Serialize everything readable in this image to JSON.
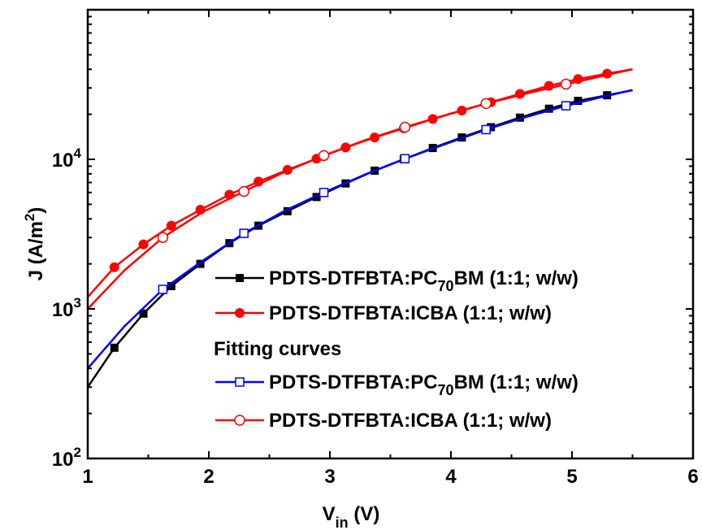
{
  "chart_data": {
    "type": "line",
    "xlim": [
      1,
      6
    ],
    "ylim": [
      100,
      100000
    ],
    "y_scale": "log",
    "x_ticks": [
      "1",
      "2",
      "3",
      "4",
      "5",
      "6"
    ],
    "y_ticks": [
      {
        "value": 100,
        "base": "10",
        "exp": "2"
      },
      {
        "value": 1000,
        "base": "10",
        "exp": "3"
      },
      {
        "value": 10000,
        "base": "10",
        "exp": "4"
      }
    ],
    "xlabel": {
      "main": "V",
      "sub": "in",
      "rest": " (V)"
    },
    "ylabel": {
      "main": "J (A/m",
      "sup": "2",
      "rest": ")"
    },
    "grid": false,
    "legend_position": "bottom-right",
    "legend_heading": "Fitting curves",
    "series": [
      {
        "name_parts": [
          "PDTS-DTFBTA:PC",
          "70",
          "BM (1:1; w/w)"
        ],
        "color": "#000000",
        "marker": "filled-square",
        "x": [
          1.0,
          1.22,
          1.46,
          1.69,
          1.93,
          2.17,
          2.41,
          2.65,
          2.89,
          3.13,
          3.37,
          3.61,
          3.85,
          4.09,
          4.33,
          4.57,
          4.81,
          5.05,
          5.29,
          5.5
        ],
        "y": [
          300,
          550,
          930,
          1420,
          2000,
          2750,
          3600,
          4500,
          5600,
          6900,
          8400,
          10000,
          11900,
          14000,
          16400,
          19000,
          21800,
          24600,
          26800,
          29000
        ],
        "marker_x": [
          1.22,
          1.46,
          1.69,
          1.93,
          2.17,
          2.41,
          2.65,
          2.89,
          3.13,
          3.37,
          3.61,
          3.85,
          4.09,
          4.33,
          4.57,
          4.81,
          5.05,
          5.29
        ]
      },
      {
        "name_parts": [
          "PDTS-DTFBTA:ICBA (1:1; w/w)"
        ],
        "color": "#ff0000",
        "marker": "filled-circle",
        "x": [
          1.0,
          1.22,
          1.46,
          1.69,
          1.93,
          2.17,
          2.41,
          2.65,
          2.89,
          3.13,
          3.37,
          3.61,
          3.85,
          4.09,
          4.33,
          4.57,
          4.81,
          5.05,
          5.29,
          5.5
        ],
        "y": [
          1200,
          1900,
          2700,
          3600,
          4600,
          5800,
          7100,
          8500,
          10100,
          12000,
          14000,
          16100,
          18600,
          21200,
          24100,
          27400,
          31000,
          34400,
          37400,
          40000
        ],
        "marker_x": [
          1.22,
          1.46,
          1.69,
          1.93,
          2.17,
          2.41,
          2.65,
          2.89,
          3.13,
          3.37,
          3.61,
          3.85,
          4.09,
          4.33,
          4.57,
          4.81,
          5.05,
          5.29
        ]
      },
      {
        "name_parts": [
          "PDTS-DTFBTA:PC",
          "70",
          "BM (1:1; w/w)"
        ],
        "color": "#0000ff",
        "marker": "open-square",
        "x": [
          1.0,
          1.3,
          1.62,
          1.95,
          2.29,
          2.62,
          2.95,
          3.29,
          3.62,
          3.95,
          4.29,
          4.62,
          4.95,
          5.28,
          5.5
        ],
        "y": [
          400,
          760,
          1350,
          2100,
          3200,
          4500,
          6000,
          7900,
          10100,
          12600,
          15800,
          19200,
          22800,
          26500,
          29000
        ],
        "marker_x": [
          1.62,
          2.29,
          2.95,
          3.62,
          4.29,
          4.95
        ]
      },
      {
        "name_parts": [
          "PDTS-DTFBTA:ICBA (1:1; w/w)"
        ],
        "color": "#ff0000",
        "marker": "open-circle",
        "x": [
          1.0,
          1.3,
          1.62,
          1.95,
          2.29,
          2.62,
          2.95,
          3.29,
          3.62,
          3.95,
          4.29,
          4.62,
          4.95,
          5.28,
          5.5
        ],
        "y": [
          1000,
          1800,
          3000,
          4450,
          6100,
          8200,
          10600,
          13400,
          16400,
          19700,
          23600,
          27500,
          31800,
          36500,
          40000
        ],
        "marker_x": [
          1.62,
          2.29,
          2.95,
          3.62,
          4.29,
          4.95
        ]
      }
    ]
  }
}
